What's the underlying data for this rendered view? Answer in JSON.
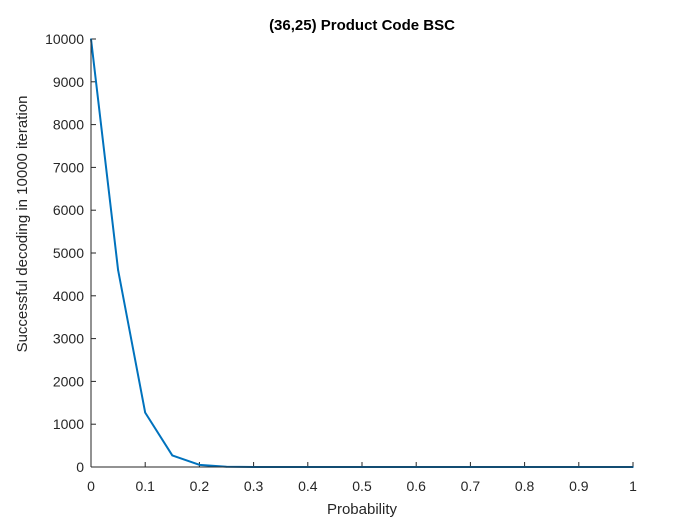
{
  "chart_data": {
    "type": "line",
    "title": "(36,25) Product Code BSC",
    "xlabel": "Probability",
    "ylabel": "Successful decoding in 10000 iteration",
    "xlim": [
      0,
      1
    ],
    "ylim": [
      0,
      10000
    ],
    "xticks": [
      0,
      0.1,
      0.2,
      0.3,
      0.4,
      0.5,
      0.6,
      0.7,
      0.8,
      0.9,
      1
    ],
    "xtick_labels": [
      "0",
      "0.1",
      "0.2",
      "0.3",
      "0.4",
      "0.5",
      "0.6",
      "0.7",
      "0.8",
      "0.9",
      "1"
    ],
    "yticks": [
      0,
      1000,
      2000,
      3000,
      4000,
      5000,
      6000,
      7000,
      8000,
      9000,
      10000
    ],
    "ytick_labels": [
      "0",
      "1000",
      "2000",
      "3000",
      "4000",
      "5000",
      "6000",
      "7000",
      "8000",
      "9000",
      "10000"
    ],
    "grid": false,
    "series": [
      {
        "color": "#0072BD",
        "x": [
          0,
          0.05,
          0.1,
          0.15,
          0.2,
          0.25,
          0.3,
          0.35,
          0.4,
          0.45,
          0.5,
          0.55,
          0.6,
          0.65,
          0.7,
          0.75,
          0.8,
          0.85,
          0.9,
          0.95,
          1
        ],
        "y": [
          10000,
          4600,
          1270,
          270,
          50,
          5,
          0,
          0,
          0,
          0,
          0,
          0,
          0,
          0,
          0,
          0,
          0,
          0,
          0,
          0,
          0
        ]
      }
    ]
  }
}
